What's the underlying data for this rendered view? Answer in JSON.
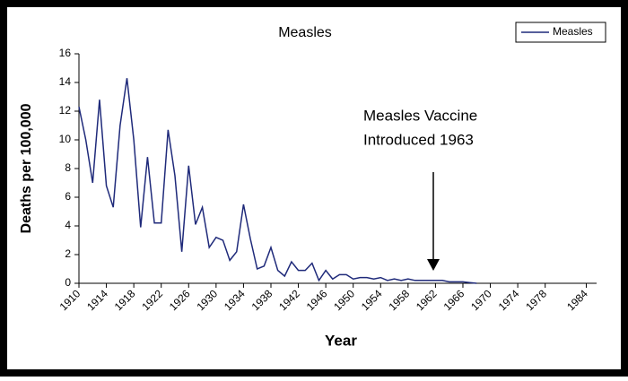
{
  "chart_data": {
    "type": "line",
    "title": "Measles",
    "x_label": "Year",
    "y_label": "Deaths per 100,000",
    "annotation": [
      "Measles Vaccine",
      "Introduced 1963"
    ],
    "x": [
      1910,
      1911,
      1912,
      1913,
      1914,
      1915,
      1916,
      1917,
      1918,
      1919,
      1920,
      1921,
      1922,
      1923,
      1924,
      1925,
      1926,
      1927,
      1928,
      1929,
      1930,
      1931,
      1932,
      1933,
      1934,
      1935,
      1936,
      1937,
      1938,
      1939,
      1940,
      1941,
      1942,
      1943,
      1944,
      1945,
      1946,
      1947,
      1948,
      1949,
      1950,
      1951,
      1952,
      1953,
      1954,
      1955,
      1956,
      1957,
      1958,
      1959,
      1960,
      1961,
      1962,
      1963,
      1964,
      1965,
      1966,
      1967,
      1968
    ],
    "series": [
      {
        "name": "Measles",
        "color": "#1f2a7a",
        "values": [
          12.3,
          10,
          7,
          12.8,
          6.8,
          5.3,
          11,
          14.3,
          10,
          3.9,
          8.8,
          4.2,
          4.2,
          10.7,
          7.5,
          2.2,
          8.2,
          4.1,
          5.3,
          2.5,
          3.2,
          3,
          1.6,
          2.2,
          5.5,
          3.1,
          1,
          1.2,
          2.5,
          0.9,
          0.5,
          1.5,
          0.9,
          0.9,
          1.4,
          0.2,
          0.9,
          0.3,
          0.6,
          0.6,
          0.3,
          0.4,
          0.4,
          0.3,
          0.4,
          0.2,
          0.3,
          0.2,
          0.3,
          0.2,
          0.2,
          0.2,
          0.2,
          0.2,
          0.1,
          0.1,
          0.1,
          0.05,
          0
        ]
      }
    ],
    "xlim": [
      1910,
      1985.5
    ],
    "xticks": [
      1910,
      1914,
      1918,
      1922,
      1926,
      1930,
      1934,
      1938,
      1942,
      1946,
      1950,
      1954,
      1958,
      1962,
      1966,
      1970,
      1974,
      1978,
      1984
    ],
    "ylim": [
      0,
      16
    ],
    "yticks": [
      0,
      2,
      4,
      6,
      8,
      10,
      12,
      14,
      16
    ],
    "legend": "top-right"
  }
}
